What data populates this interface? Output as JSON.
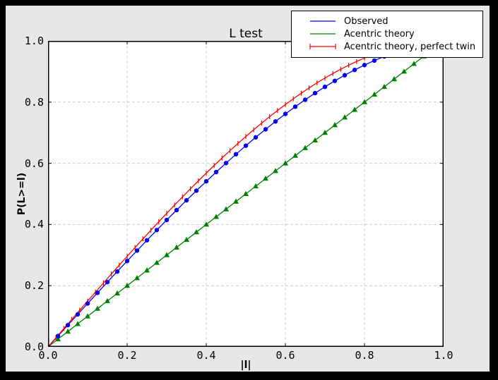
{
  "colors": {
    "window_bg": "#000000",
    "figure_bg": "#e7e7e7",
    "plot_bg": "#ffffff",
    "grid": "#cccccc",
    "axis": "#000000",
    "observed": "#0000ff",
    "acentric": "#008000",
    "twin": "#ff0000"
  },
  "title": "L test",
  "xlabel": "|l|",
  "ylabel": "P(L>=l)",
  "legend": {
    "items": [
      {
        "label": "Observed",
        "color": "#0000ff"
      },
      {
        "label": "Acentric theory",
        "color": "#008000"
      },
      {
        "label": "Acentric theory, perfect twin",
        "color": "#ff0000"
      }
    ]
  },
  "chart_data": {
    "type": "line",
    "title": "L test",
    "xlabel": "|l|",
    "ylabel": "P(L>=l)",
    "xlim": [
      0,
      1
    ],
    "ylim": [
      0,
      1
    ],
    "grid": {
      "show": true,
      "style": "dashed",
      "positions": [
        0.2,
        0.4,
        0.6,
        0.8
      ]
    },
    "legend_position": "upper right, overlapping top edge of axes",
    "xticks": [
      0,
      0.2,
      0.4,
      0.6,
      0.8,
      1
    ],
    "yticks": [
      0,
      0.2,
      0.4,
      0.6,
      0.8,
      1
    ],
    "xtick_labels": [
      "0.0",
      "0.2",
      "0.4",
      "0.6",
      "0.8",
      "1.0"
    ],
    "ytick_labels": [
      "0.0",
      "0.2",
      "0.4",
      "0.6",
      "0.8",
      "1.0"
    ],
    "series": [
      {
        "id": "observed",
        "name": "Observed",
        "color": "#0000ff",
        "marker": "circle",
        "x": [
          0,
          0.025,
          0.05,
          0.075,
          0.1,
          0.125,
          0.15,
          0.175,
          0.2,
          0.225,
          0.25,
          0.275,
          0.3,
          0.325,
          0.35,
          0.375,
          0.4,
          0.425,
          0.45,
          0.475,
          0.5,
          0.525,
          0.55,
          0.575,
          0.6,
          0.625,
          0.65,
          0.675,
          0.7,
          0.725,
          0.75,
          0.775,
          0.8,
          0.825,
          0.85,
          0.875,
          0.9,
          0.925,
          0.95,
          0.975,
          1
        ],
        "y": [
          0,
          0.0355,
          0.0709,
          0.1063,
          0.1416,
          0.1767,
          0.2116,
          0.2462,
          0.2806,
          0.3147,
          0.3484,
          0.3818,
          0.4147,
          0.4471,
          0.479,
          0.5104,
          0.5411,
          0.5713,
          0.6007,
          0.6295,
          0.6575,
          0.6847,
          0.7111,
          0.7367,
          0.7613,
          0.785,
          0.8077,
          0.8293,
          0.8499,
          0.8694,
          0.8878,
          0.905,
          0.921,
          0.9357,
          0.9491,
          0.9611,
          0.9718,
          0.9811,
          0.9889,
          0.9952,
          1
        ]
      },
      {
        "id": "acentric-theory",
        "name": "Acentric theory",
        "color": "#008000",
        "marker": "triangle-up",
        "x": [
          0,
          0.025,
          0.05,
          0.075,
          0.1,
          0.125,
          0.15,
          0.175,
          0.2,
          0.225,
          0.25,
          0.275,
          0.3,
          0.325,
          0.35,
          0.375,
          0.4,
          0.425,
          0.45,
          0.475,
          0.5,
          0.525,
          0.55,
          0.575,
          0.6,
          0.625,
          0.65,
          0.675,
          0.7,
          0.725,
          0.75,
          0.775,
          0.8,
          0.825,
          0.85,
          0.875,
          0.9,
          0.925,
          0.95,
          0.975,
          1
        ],
        "y": [
          0,
          0.025,
          0.05,
          0.075,
          0.1,
          0.125,
          0.15,
          0.175,
          0.2,
          0.225,
          0.25,
          0.275,
          0.3,
          0.325,
          0.35,
          0.375,
          0.4,
          0.425,
          0.45,
          0.475,
          0.5,
          0.525,
          0.55,
          0.575,
          0.6,
          0.625,
          0.65,
          0.675,
          0.7,
          0.725,
          0.75,
          0.775,
          0.8,
          0.825,
          0.85,
          0.875,
          0.9,
          0.925,
          0.95,
          0.975,
          1
        ]
      },
      {
        "id": "acentric-theory-perfect-twin",
        "name": "Acentric theory, perfect twin",
        "color": "#ff0000",
        "marker": "vtick",
        "x": [
          0,
          0.02,
          0.04,
          0.06,
          0.08,
          0.1,
          0.12,
          0.14,
          0.16,
          0.18,
          0.2,
          0.22,
          0.24,
          0.26,
          0.28,
          0.3,
          0.32,
          0.34,
          0.36,
          0.38,
          0.4,
          0.42,
          0.44,
          0.46,
          0.48,
          0.5,
          0.52,
          0.54,
          0.56,
          0.58,
          0.6,
          0.62,
          0.64,
          0.66,
          0.68,
          0.7,
          0.72,
          0.74,
          0.76,
          0.78,
          0.8,
          0.82,
          0.84,
          0.86,
          0.88,
          0.9,
          0.92,
          0.94,
          0.96,
          0.98,
          1
        ],
        "y": [
          0,
          0.03,
          0.06,
          0.0899,
          0.1197,
          0.1495,
          0.1791,
          0.2086,
          0.238,
          0.2671,
          0.296,
          0.3247,
          0.3531,
          0.3812,
          0.409,
          0.4365,
          0.4636,
          0.4903,
          0.5167,
          0.5426,
          0.568,
          0.593,
          0.6174,
          0.6413,
          0.6647,
          0.6875,
          0.7097,
          0.7313,
          0.7522,
          0.7724,
          0.792,
          0.8108,
          0.8289,
          0.8463,
          0.8628,
          0.8785,
          0.8934,
          0.9074,
          0.9205,
          0.9327,
          0.944,
          0.9543,
          0.9636,
          0.972,
          0.9793,
          0.9855,
          0.9907,
          0.9947,
          0.9976,
          0.9994,
          1
        ]
      }
    ]
  }
}
